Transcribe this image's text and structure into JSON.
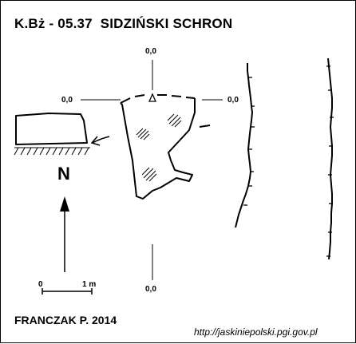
{
  "title": "K.Bż - 05.37  SIDZIŃSKI SCHRON",
  "author": "FRANCZAK P. 2014",
  "url": "http://jaskiniepolski.pgi.gov.pl",
  "coordinates": {
    "top": "0,0",
    "left": "0,0",
    "right": "0,0",
    "bottom": "0,0"
  },
  "north_label": "N",
  "scale": {
    "start": "0",
    "end": "1 m"
  }
}
